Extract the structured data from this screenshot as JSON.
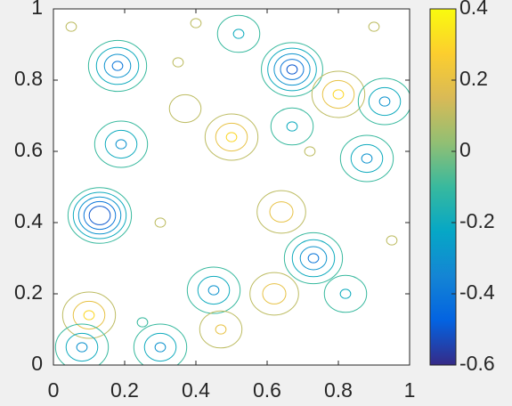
{
  "chart_data": {
    "type": "contour",
    "xlim": [
      0,
      1
    ],
    "ylim": [
      0,
      1
    ],
    "xticks": [
      0,
      0.2,
      0.4,
      0.6,
      0.8,
      1
    ],
    "yticks": [
      0,
      0.2,
      0.4,
      0.6,
      0.8,
      1
    ],
    "clim": [
      -0.6,
      0.4
    ],
    "cticks": [
      -0.6,
      -0.4,
      -0.2,
      0,
      0.2,
      0.4
    ],
    "colormap": [
      "#352a87",
      "#0363e1",
      "#1485d4",
      "#06a7c6",
      "#38b99e",
      "#92bf73",
      "#d9ba56",
      "#fcce2e",
      "#f9fb0e"
    ],
    "levels": [
      -0.5,
      -0.4,
      -0.3,
      -0.2,
      -0.1,
      0.1,
      0.2,
      0.3
    ],
    "extrema": [
      {
        "x": 0.13,
        "y": 0.42,
        "value": -0.6
      },
      {
        "x": 0.18,
        "y": 0.84,
        "value": -0.4
      },
      {
        "x": 0.67,
        "y": 0.83,
        "value": -0.5
      },
      {
        "x": 0.8,
        "y": 0.76,
        "value": 0.3
      },
      {
        "x": 0.93,
        "y": 0.74,
        "value": -0.3
      },
      {
        "x": 0.5,
        "y": 0.64,
        "value": 0.3
      },
      {
        "x": 0.19,
        "y": 0.62,
        "value": -0.3
      },
      {
        "x": 0.1,
        "y": 0.14,
        "value": 0.3
      },
      {
        "x": 0.64,
        "y": 0.43,
        "value": 0.25
      },
      {
        "x": 0.73,
        "y": 0.3,
        "value": -0.4
      },
      {
        "x": 0.62,
        "y": 0.2,
        "value": 0.25
      },
      {
        "x": 0.45,
        "y": 0.21,
        "value": -0.3
      },
      {
        "x": 0.88,
        "y": 0.58,
        "value": -0.3
      },
      {
        "x": 0.67,
        "y": 0.67,
        "value": -0.2
      },
      {
        "x": 0.52,
        "y": 0.93,
        "value": -0.2
      },
      {
        "x": 0.4,
        "y": 0.96,
        "value": 0.1
      },
      {
        "x": 0.37,
        "y": 0.72,
        "value": 0.15
      },
      {
        "x": 0.82,
        "y": 0.2,
        "value": -0.2
      },
      {
        "x": 0.3,
        "y": 0.05,
        "value": -0.3
      },
      {
        "x": 0.08,
        "y": 0.05,
        "value": -0.3
      },
      {
        "x": 0.47,
        "y": 0.1,
        "value": 0.2
      },
      {
        "x": 0.35,
        "y": 0.85,
        "value": 0.1
      },
      {
        "x": 0.25,
        "y": 0.12,
        "value": -0.1
      },
      {
        "x": 0.95,
        "y": 0.35,
        "value": 0.1
      },
      {
        "x": 0.72,
        "y": 0.6,
        "value": 0.1
      },
      {
        "x": 0.9,
        "y": 0.95,
        "value": 0.1
      },
      {
        "x": 0.05,
        "y": 0.95,
        "value": 0.1
      },
      {
        "x": 0.3,
        "y": 0.4,
        "value": 0.1
      }
    ]
  }
}
